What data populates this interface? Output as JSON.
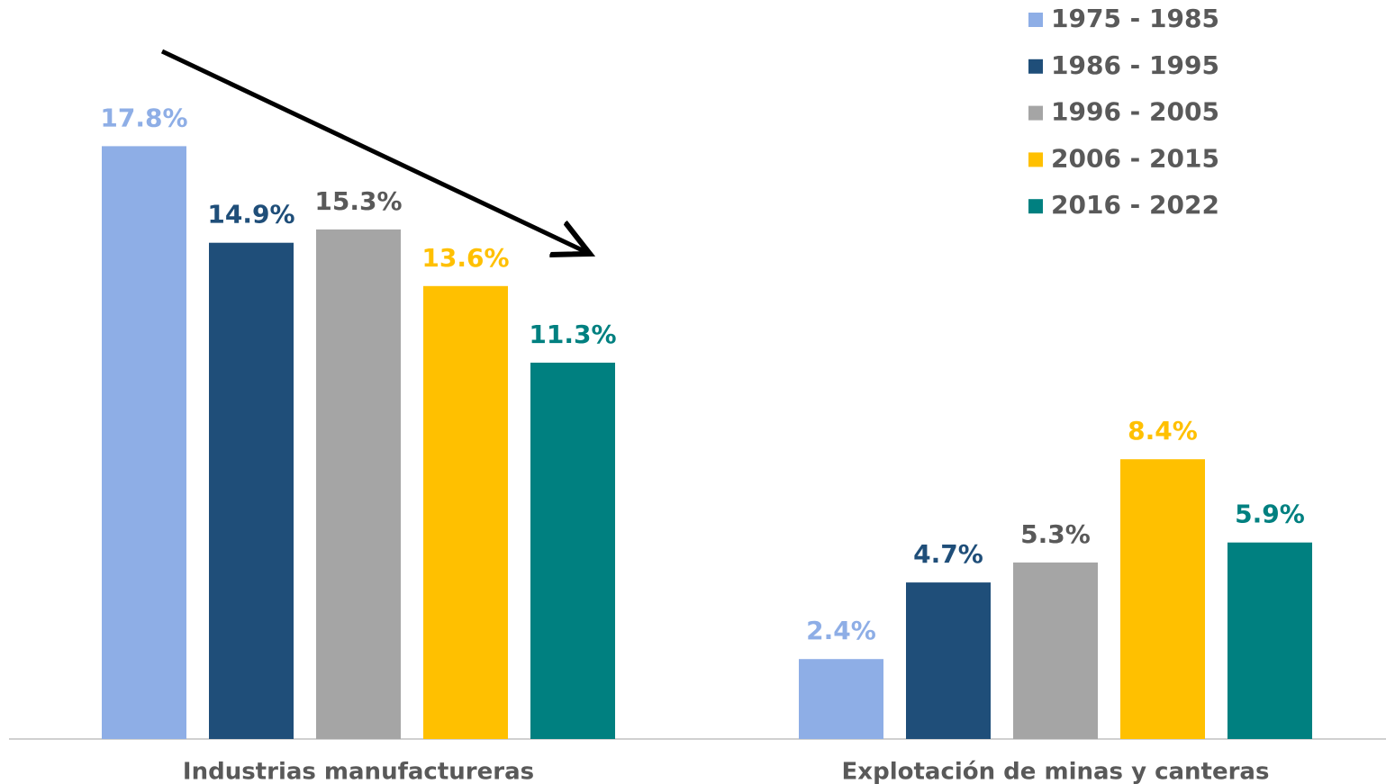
{
  "chart_data": {
    "type": "bar",
    "categories": [
      "Industrias manufactureras",
      "Explotación de minas y canteras"
    ],
    "series": [
      {
        "name": "1975 - 1985",
        "color": "#8eaee6",
        "label_color": "#8eaee6",
        "values": [
          17.8,
          2.4
        ],
        "value_labels": [
          "17.8%",
          "2.4%"
        ]
      },
      {
        "name": "1986 - 1995",
        "color": "#1f4e79",
        "label_color": "#1f4e79",
        "values": [
          14.9,
          4.7
        ],
        "value_labels": [
          "14.9%",
          "4.7%"
        ]
      },
      {
        "name": "1996 - 2005",
        "color": "#a5a5a5",
        "label_color": "#595959",
        "values": [
          15.3,
          5.3
        ],
        "value_labels": [
          "15.3%",
          "5.3%"
        ]
      },
      {
        "name": "2006 - 2015",
        "color": "#ffc000",
        "label_color": "#ffc000",
        "values": [
          13.6,
          8.4
        ],
        "value_labels": [
          "13.6%",
          "8.4%"
        ]
      },
      {
        "name": "2016 - 2022",
        "color": "#008080",
        "label_color": "#008080",
        "values": [
          11.3,
          5.9
        ],
        "value_labels": [
          "11.3%",
          "5.9%"
        ]
      }
    ],
    "ylim": [
      0,
      20
    ],
    "legend": "top-right"
  }
}
